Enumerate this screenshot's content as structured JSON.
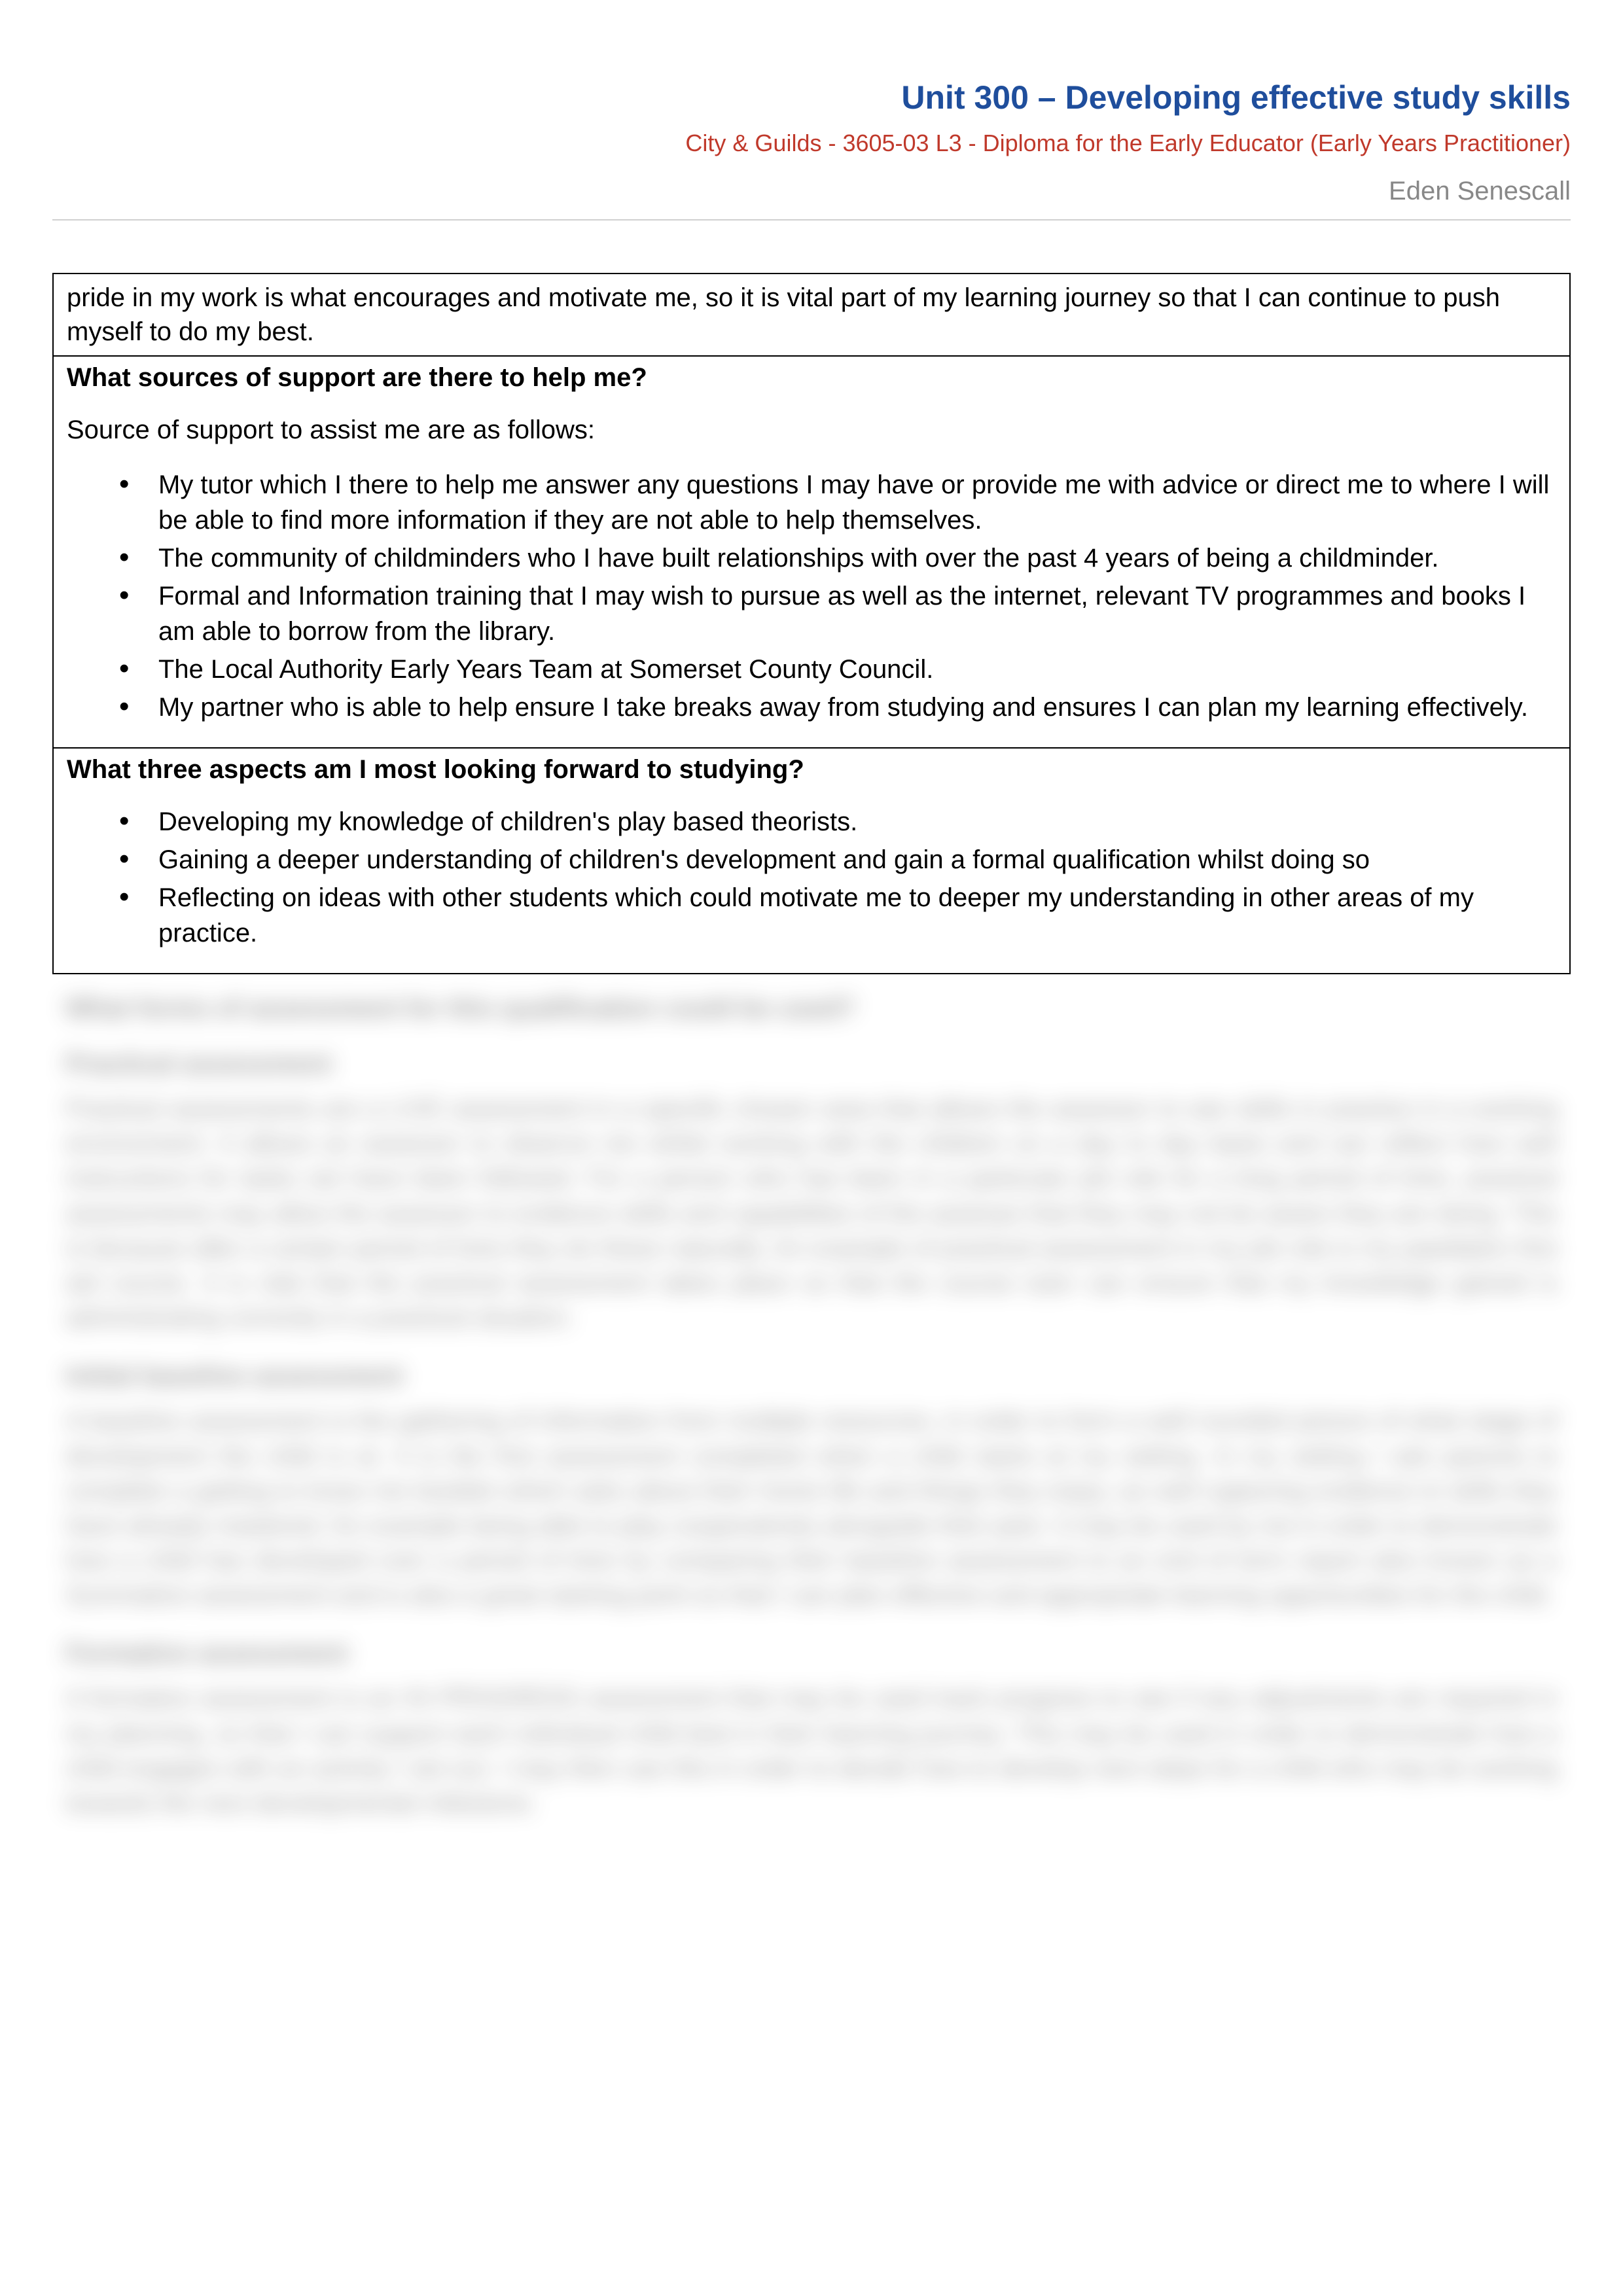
{
  "header": {
    "title": "Unit 300 – Developing effective study skills",
    "subtitle": "City & Guilds - 3605-03 L3 - Diploma for the Early Educator (Early Years Practitioner)",
    "author": "Eden Senescall",
    "title_color": "#1f4e9c",
    "subtitle_color": "#c0392b",
    "author_color": "#888888"
  },
  "top_fragment": "pride in my work is what encourages and motivate me, so it is vital part of my learning journey so that I can continue to push myself to do my best.",
  "support": {
    "heading": "What sources of support are there to help me?",
    "intro": "Source of support to assist me are as follows:",
    "items": [
      "My tutor which I there to help me answer any questions I may have or provide me with advice or direct me to where I will be able to find more information if they are not able to help themselves.",
      "The community of childminders who I have built relationships with over the past 4 years of being a childminder.",
      "Formal and Information training that I may wish to pursue as well as the internet, relevant TV programmes and books I am able to borrow from the library.",
      "The Local Authority Early Years Team at Somerset County Council.",
      "My partner who is able to help ensure I take breaks away from studying and ensures I can plan my learning effectively."
    ]
  },
  "looking_forward": {
    "heading": "What three aspects am I most looking forward to studying?",
    "items": [
      "Developing my knowledge of children's play based theorists.",
      "Gaining a deeper understanding of children's development and gain a formal qualification whilst doing so",
      "Reflecting on ideas with other students which could motivate me to deeper my understanding in other areas of my practice."
    ]
  },
  "blurred": {
    "question": "What forms of assessment for this qualification could be used?",
    "h1": "Practical assessment",
    "p1": "Practical assessments are a LIVE assessment in a specific chosen area that allows the assessor to see skills in practice in a working environment. It allows an assessor to observe me whilst working with the children on a day to day basis and can reflect how well instructions for tasks set have been followed. For a person who has been in a particular job role for a long period of time, practical assessments may allow the assessor to evidence skills and capabilities of the assesse that they may not be aware they are doing. This is because after a certain period of time they do these naturally. An example of practical assessment in my job role is my paediatric first aid course. It is vital that the practical assessment takes place so that the course tutor can ensure that my knowledge gained is administrating correctly in a practical situation.",
    "h2": "Initial baseline assessment",
    "p2": "A baseline assessment is the gathering of information from multiple resources, in order to form a well rounded picture of what stage of development the child is at. It is the first assessment completed when a child starts at my setting. In my setting I ask parents to complete a getting to know me booklet which asks about their home life and things they enjoy, as well capturing evidence ie skills they have already mastered, for example being able to play cooperatively alongside their peer. It may be used by me in order to demonstrate how a child has developed over a period of time by comparing their baseline assessment to an end of term report also known as a Summative assessment and is also a great starting point so that I can plan effective and appropriate learning opportunities for the child.",
    "h3": "Formative assessment",
    "p3": "A formative assessment is an IN PROGRESS assessment that may be used track progress to see if any adjustments are required in my planning, so that I can support each individual child best in their learning journey. This may be used in order to demonstrate how a child engages with an activity I set out. I may then use this in order to decide how to develop next steps for a child who may be working towards the next developmental milestone."
  }
}
